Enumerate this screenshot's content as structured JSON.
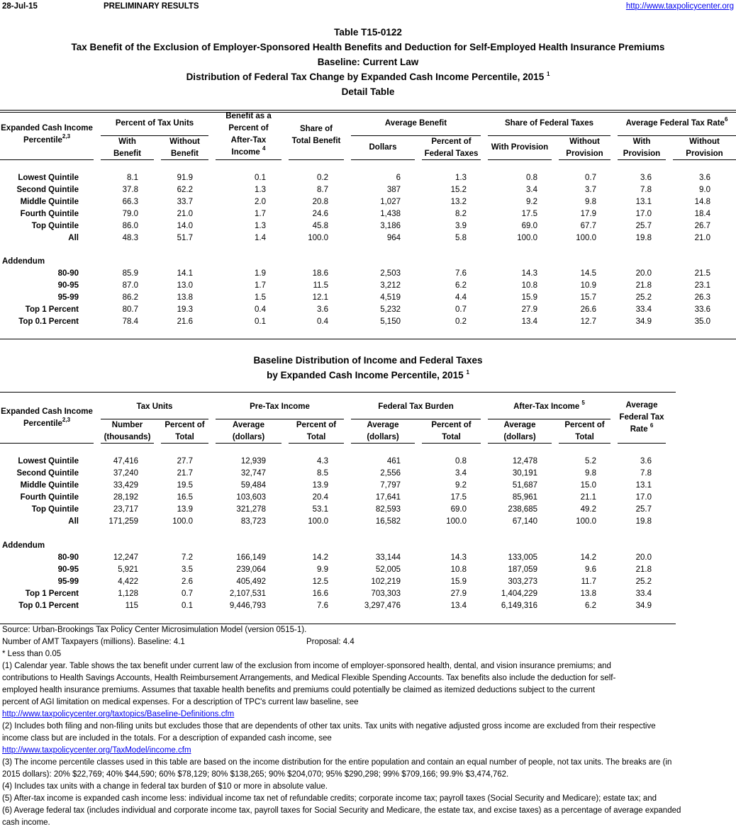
{
  "top": {
    "date": "28-Jul-15",
    "status": "PRELIMINARY RESULTS",
    "url": "http://www.taxpolicycenter.org"
  },
  "titles": [
    "Table T15-0122",
    "Tax Benefit of the Exclusion of Employer-Sponsored Health Benefits and Deduction for Self-Employed Health Insurance Premiums",
    "Baseline: Current Law",
    "Distribution of Federal Tax Change by Expanded Cash Income Percentile, 2015",
    "Detail Table"
  ],
  "title_note": "1",
  "table1": {
    "headers": {
      "row_label": "Expanded Cash Income",
      "row_label2": "Percentile",
      "row_label_note": "2,3",
      "pct_units": "Percent of Tax Units",
      "with_benefit": [
        "With",
        "Benefit"
      ],
      "without_benefit": [
        "Without",
        "Benefit"
      ],
      "benefit_pct": [
        "Benefit as a",
        "Percent of",
        "After-Tax",
        "Income"
      ],
      "benefit_pct_note": "4",
      "share_total": [
        "Share of",
        "Total Benefit"
      ],
      "avg_benefit": "Average Benefit",
      "dollars": "Dollars",
      "pct_fed": [
        "Percent of",
        "Federal Taxes"
      ],
      "share_fed": "Share of Federal Taxes",
      "with_prov": "With Provision",
      "without_prov": [
        "Without",
        "Provision"
      ],
      "avg_rate": "Average Federal Tax Rate",
      "avg_rate_note": "6",
      "rate_with": [
        "With",
        "Provision"
      ],
      "rate_without": [
        "Without",
        "Provision"
      ]
    },
    "rows": [
      {
        "label": "Lowest Quintile",
        "values": [
          "8.1",
          "91.9",
          "0.1",
          "0.2",
          "6",
          "1.3",
          "0.8",
          "0.7",
          "3.6",
          "3.6"
        ]
      },
      {
        "label": "Second Quintile",
        "values": [
          "37.8",
          "62.2",
          "1.3",
          "8.7",
          "387",
          "15.2",
          "3.4",
          "3.7",
          "7.8",
          "9.0"
        ]
      },
      {
        "label": "Middle Quintile",
        "values": [
          "66.3",
          "33.7",
          "2.0",
          "20.8",
          "1,027",
          "13.2",
          "9.2",
          "9.8",
          "13.1",
          "14.8"
        ]
      },
      {
        "label": "Fourth Quintile",
        "values": [
          "79.0",
          "21.0",
          "1.7",
          "24.6",
          "1,438",
          "8.2",
          "17.5",
          "17.9",
          "17.0",
          "18.4"
        ]
      },
      {
        "label": "Top Quintile",
        "values": [
          "86.0",
          "14.0",
          "1.3",
          "45.8",
          "3,186",
          "3.9",
          "69.0",
          "67.7",
          "25.7",
          "26.7"
        ]
      },
      {
        "label": "All",
        "values": [
          "48.3",
          "51.7",
          "1.4",
          "100.0",
          "964",
          "5.8",
          "100.0",
          "100.0",
          "19.8",
          "21.0"
        ]
      }
    ],
    "addendum_label": "Addendum",
    "addendum": [
      {
        "label": "80-90",
        "values": [
          "85.9",
          "14.1",
          "1.9",
          "18.6",
          "2,503",
          "7.6",
          "14.3",
          "14.5",
          "20.0",
          "21.5"
        ]
      },
      {
        "label": "90-95",
        "values": [
          "87.0",
          "13.0",
          "1.7",
          "11.5",
          "3,212",
          "6.2",
          "10.8",
          "10.9",
          "21.8",
          "23.1"
        ]
      },
      {
        "label": "95-99",
        "values": [
          "86.2",
          "13.8",
          "1.5",
          "12.1",
          "4,519",
          "4.4",
          "15.9",
          "15.7",
          "25.2",
          "26.3"
        ]
      },
      {
        "label": "Top 1 Percent",
        "values": [
          "80.7",
          "19.3",
          "0.4",
          "3.6",
          "5,232",
          "0.7",
          "27.9",
          "26.6",
          "33.4",
          "33.6"
        ]
      },
      {
        "label": "Top 0.1 Percent",
        "values": [
          "78.4",
          "21.6",
          "0.1",
          "0.4",
          "5,150",
          "0.2",
          "13.4",
          "12.7",
          "34.9",
          "35.0"
        ]
      }
    ]
  },
  "table2_titles": [
    "Baseline Distribution of Income and Federal Taxes",
    "by Expanded Cash Income Percentile, 2015"
  ],
  "table2_title_note": "1",
  "table2": {
    "headers": {
      "row_label": "Expanded Cash Income",
      "row_label2": "Percentile",
      "row_label_note": "2,3",
      "tax_units": "Tax Units",
      "number": [
        "Number",
        "(thousands)"
      ],
      "pct_total": [
        "Percent of",
        "Total"
      ],
      "pretax": "Pre-Tax Income",
      "average": [
        "Average",
        "(dollars)"
      ],
      "burden": "Federal Tax Burden",
      "aftertax": "After-Tax Income",
      "aftertax_note": "5",
      "avg_rate": [
        "Average",
        "Federal Tax",
        "Rate"
      ],
      "avg_rate_note": "6"
    },
    "rows": [
      {
        "label": "Lowest Quintile",
        "values": [
          "47,416",
          "27.7",
          "12,939",
          "4.3",
          "461",
          "0.8",
          "12,478",
          "5.2",
          "3.6"
        ]
      },
      {
        "label": "Second Quintile",
        "values": [
          "37,240",
          "21.7",
          "32,747",
          "8.5",
          "2,556",
          "3.4",
          "30,191",
          "9.8",
          "7.8"
        ]
      },
      {
        "label": "Middle Quintile",
        "values": [
          "33,429",
          "19.5",
          "59,484",
          "13.9",
          "7,797",
          "9.2",
          "51,687",
          "15.0",
          "13.1"
        ]
      },
      {
        "label": "Fourth Quintile",
        "values": [
          "28,192",
          "16.5",
          "103,603",
          "20.4",
          "17,641",
          "17.5",
          "85,961",
          "21.1",
          "17.0"
        ]
      },
      {
        "label": "Top Quintile",
        "values": [
          "23,717",
          "13.9",
          "321,278",
          "53.1",
          "82,593",
          "69.0",
          "238,685",
          "49.2",
          "25.7"
        ]
      },
      {
        "label": "All",
        "values": [
          "171,259",
          "100.0",
          "83,723",
          "100.0",
          "16,582",
          "100.0",
          "67,140",
          "100.0",
          "19.8"
        ]
      }
    ],
    "addendum_label": "Addendum",
    "addendum": [
      {
        "label": "80-90",
        "values": [
          "12,247",
          "7.2",
          "166,149",
          "14.2",
          "33,144",
          "14.3",
          "133,005",
          "14.2",
          "20.0"
        ]
      },
      {
        "label": "90-95",
        "values": [
          "5,921",
          "3.5",
          "239,064",
          "9.9",
          "52,005",
          "10.8",
          "187,059",
          "9.6",
          "21.8"
        ]
      },
      {
        "label": "95-99",
        "values": [
          "4,422",
          "2.6",
          "405,492",
          "12.5",
          "102,219",
          "15.9",
          "303,273",
          "11.7",
          "25.2"
        ]
      },
      {
        "label": "Top 1 Percent",
        "values": [
          "1,128",
          "0.7",
          "2,107,531",
          "16.6",
          "703,303",
          "27.9",
          "1,404,229",
          "13.8",
          "33.4"
        ]
      },
      {
        "label": "Top 0.1 Percent",
        "values": [
          "115",
          "0.1",
          "9,446,793",
          "7.6",
          "3,297,476",
          "13.4",
          "6,149,316",
          "6.2",
          "34.9"
        ]
      }
    ]
  },
  "notes": {
    "source": "Source: Urban-Brookings Tax Policy Center Microsimulation Model (version 0515-1).",
    "amt": "Number of AMT Taxpayers (millions).  Baseline: 4.1",
    "amt_proposal": "Proposal: 4.4",
    "less": "* Less than 0.05",
    "lines": [
      {
        "text": "(1) Calendar year. Table shows the tax benefit under current law of the exclusion from income of employer-sponsored health, dental, and vision insurance premiums; and"
      },
      {
        "text": "contributions to Health Savings Accounts, Health Reimbursement Arrangements, and Medical Flexible Spending Accounts.  Tax benefits also include the deduction for self-"
      },
      {
        "text": "employed health insurance premiums.  Assumes that taxable health benefits and premiums could potentially be claimed as itemized deductions subject to the current"
      },
      {
        "text": "percent of AGI limitation on medical expenses.  For a description of TPC's current law baseline, see"
      },
      {
        "text": "http://www.taxpolicycenter.org/taxtopics/Baseline-Definitions.cfm",
        "link": true
      },
      {
        "text": "(2) Includes both filing and non-filing units but excludes those that are dependents of other tax units. Tax units with negative adjusted gross income are excluded from their respective"
      },
      {
        "text": "income class but are included in the totals. For a description of expanded cash income, see"
      },
      {
        "text": "http://www.taxpolicycenter.org/TaxModel/income.cfm",
        "link": true
      },
      {
        "text": "(3) The income percentile classes used in this table are based on the income distribution for the entire population and contain an equal number of people, not tax units. The breaks are (in"
      },
      {
        "text": "2015 dollars): 20% $22,769; 40% $44,590; 60% $78,129; 80% $138,265; 90% $204,070; 95% $290,298; 99% $709,166; 99.9% $3,474,762."
      },
      {
        "text": "(4) Includes tax units with a change in federal tax burden of $10 or more in absolute value."
      },
      {
        "text": "(5) After-tax income is expanded cash income less: individual income tax net of refundable credits; corporate income tax; payroll taxes (Social Security and Medicare); estate tax; and"
      },
      {
        "text": "(6) Average federal tax (includes individual and corporate income tax, payroll taxes for Social Security and Medicare, the estate tax, and excise taxes) as a percentage of average expanded"
      },
      {
        "text": "cash income."
      }
    ]
  },
  "colors": {
    "text": "#000000",
    "link": "#0000ee",
    "background": "#ffffff"
  }
}
